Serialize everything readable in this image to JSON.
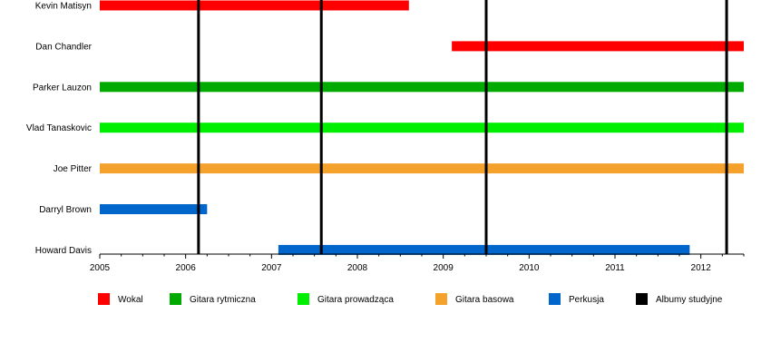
{
  "chart_data": {
    "type": "timeline",
    "title": "",
    "xlabel": "",
    "ylabel": "",
    "xlim": [
      2005.0,
      2012.5
    ],
    "x_ticks": [
      2005,
      2006,
      2007,
      2008,
      2009,
      2010,
      2011,
      2012
    ],
    "grid": false,
    "legend_position": "bottom",
    "members": [
      "Kevin Matisyn",
      "Dan Chandler",
      "Parker Lauzon",
      "Vlad Tanaskovic",
      "Joe Pitter",
      "Darryl Brown",
      "Howard Davis"
    ],
    "roles": [
      {
        "name": "Wokal",
        "color": "#ff0000"
      },
      {
        "name": "Gitara rytmiczna",
        "color": "#00aa00"
      },
      {
        "name": "Gitara prowadząca",
        "color": "#00ee00"
      },
      {
        "name": "Gitara basowa",
        "color": "#f5a22d"
      },
      {
        "name": "Perkusja",
        "color": "#0066cc"
      },
      {
        "name": "Albumy studyjne",
        "color": "#000000"
      }
    ],
    "bars": [
      {
        "member": "Kevin Matisyn",
        "role": "Wokal",
        "start": 2005.0,
        "end": 2008.6
      },
      {
        "member": "Dan Chandler",
        "role": "Wokal",
        "start": 2009.1,
        "end": 2012.5
      },
      {
        "member": "Parker Lauzon",
        "role": "Gitara rytmiczna",
        "start": 2005.0,
        "end": 2012.5
      },
      {
        "member": "Vlad Tanaskovic",
        "role": "Gitara prowadząca",
        "start": 2005.0,
        "end": 2012.5
      },
      {
        "member": "Joe Pitter",
        "role": "Gitara basowa",
        "start": 2005.0,
        "end": 2012.5
      },
      {
        "member": "Darryl Brown",
        "role": "Perkusja",
        "start": 2005.0,
        "end": 2006.25
      },
      {
        "member": "Howard Davis",
        "role": "Perkusja",
        "start": 2007.08,
        "end": 2011.87
      }
    ],
    "albums": [
      2006.15,
      2007.58,
      2009.5,
      2012.3
    ]
  }
}
